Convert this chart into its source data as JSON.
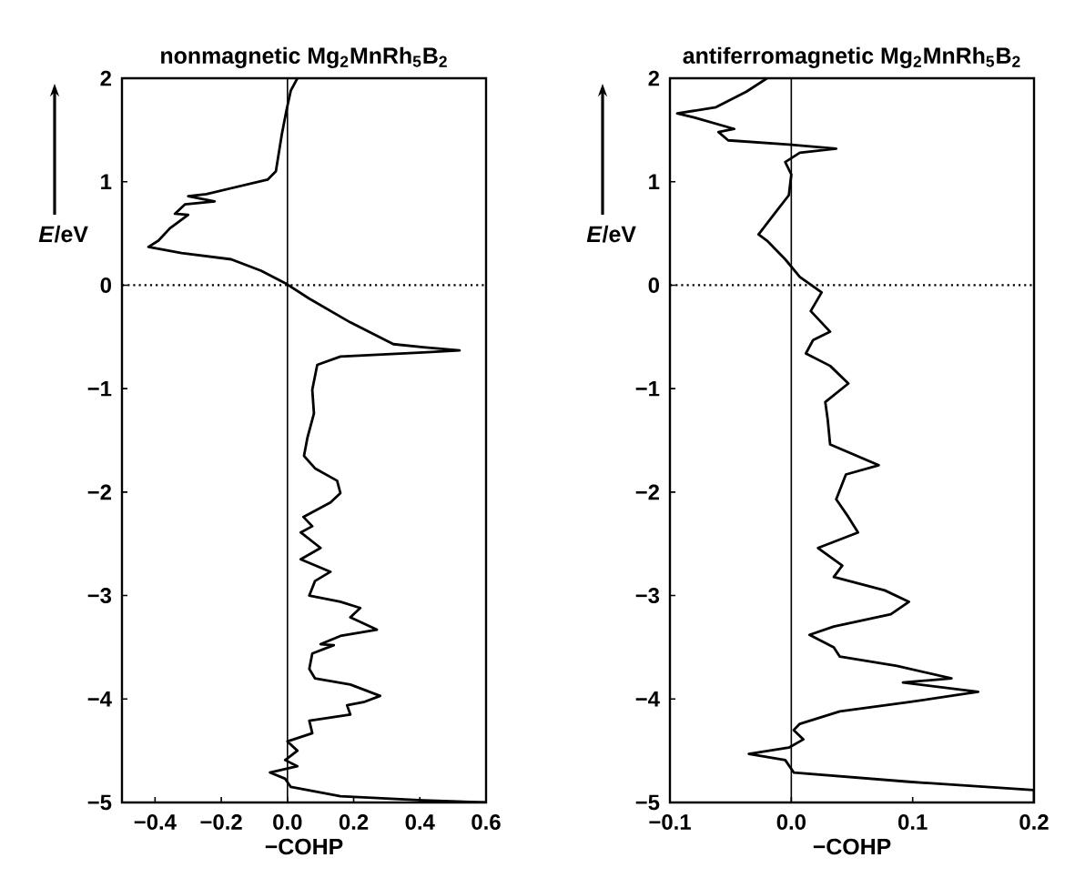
{
  "chart_data": [
    {
      "type": "line",
      "title": "nonmagnetic Mg$_{2}$MnRh$_{5}$B$_{2}$",
      "xlabel": "−COHP",
      "ylabel": "*E*/eV",
      "xlim": [
        -0.5,
        0.6
      ],
      "ylim": [
        -5,
        2
      ],
      "xticks": [
        {
          "value": -0.4,
          "label": "−0.4"
        },
        {
          "value": -0.2,
          "label": "−0.2"
        },
        {
          "value": 0.0,
          "label": "0.0"
        },
        {
          "value": 0.2,
          "label": "0.2"
        },
        {
          "value": 0.4,
          "label": "0.4"
        },
        {
          "value": 0.6,
          "label": "0.6"
        }
      ],
      "yticks": [
        {
          "value": -5,
          "label": "−5"
        },
        {
          "value": -4,
          "label": "−4"
        },
        {
          "value": -3,
          "label": "−3"
        },
        {
          "value": -2,
          "label": "−2"
        },
        {
          "value": -1,
          "label": "−1"
        },
        0,
        1,
        2
      ],
      "series": [
        {
          "color": "#000000",
          "x": [
            0.03,
            0.01,
            -0.003,
            -0.017,
            -0.035,
            -0.06,
            -0.245,
            -0.3,
            -0.22,
            -0.31,
            -0.34,
            -0.3,
            -0.355,
            -0.39,
            -0.42,
            -0.32,
            -0.17,
            -0.08,
            -0.007,
            0.066,
            0.19,
            0.32,
            0.41,
            0.52,
            0.41,
            0.16,
            0.09,
            0.075,
            0.08,
            0.06,
            0.05,
            0.083,
            0.15,
            0.16,
            0.13,
            0.048,
            0.075,
            0.04,
            0.1,
            0.04,
            0.13,
            0.083,
            0.066,
            0.16,
            0.22,
            0.19,
            0.27,
            0.16,
            0.1,
            0.14,
            0.075,
            0.066,
            0.083,
            0.19,
            0.28,
            0.23,
            0.18,
            0.19,
            0.066,
            0.075,
            0.0,
            0.03,
            -0.007,
            0.03,
            -0.053,
            -0.007,
            0.01,
            0.16,
            0.41,
            0.6
          ],
          "values": [
            2.0,
            1.88,
            1.69,
            1.46,
            1.1,
            1.02,
            0.88,
            0.86,
            0.81,
            0.78,
            0.69,
            0.68,
            0.55,
            0.43,
            0.37,
            0.31,
            0.25,
            0.14,
            0.02,
            -0.13,
            -0.36,
            -0.57,
            -0.6,
            -0.63,
            -0.65,
            -0.69,
            -0.77,
            -1.01,
            -1.24,
            -1.48,
            -1.65,
            -1.77,
            -1.89,
            -2.01,
            -2.1,
            -2.24,
            -2.33,
            -2.39,
            -2.54,
            -2.65,
            -2.77,
            -2.86,
            -3.0,
            -3.06,
            -3.12,
            -3.21,
            -3.33,
            -3.39,
            -3.47,
            -3.48,
            -3.56,
            -3.71,
            -3.8,
            -3.86,
            -3.97,
            -4.03,
            -4.06,
            -4.15,
            -4.21,
            -4.33,
            -4.41,
            -4.5,
            -4.59,
            -4.65,
            -4.71,
            -4.77,
            -4.85,
            -4.94,
            -4.98,
            -5.0
          ]
        }
      ],
      "ref_lines": [
        {
          "axis": "y",
          "value": 0,
          "line_style": "dotted",
          "color": "#000000"
        },
        {
          "axis": "x",
          "value": 0,
          "line_style": "solid",
          "color": "#000000"
        }
      ],
      "line_style": "solid"
    },
    {
      "type": "line",
      "title": "antiferromagnetic Mg$_{2}$MnRh$_{5}$B$_{2}$",
      "xlabel": "−COHP",
      "ylabel": "*E*/eV",
      "xlim": [
        -0.1,
        0.2
      ],
      "ylim": [
        -5,
        2
      ],
      "xticks": [
        {
          "value": -0.1,
          "label": "−0.1"
        },
        {
          "value": 0.0,
          "label": "0.0"
        },
        {
          "value": 0.1,
          "label": "0.1"
        },
        {
          "value": 0.2,
          "label": "0.2"
        }
      ],
      "yticks": [
        {
          "value": -5,
          "label": "−5"
        },
        {
          "value": -4,
          "label": "−4"
        },
        {
          "value": -3,
          "label": "−3"
        },
        {
          "value": -2,
          "label": "−2"
        },
        {
          "value": -1,
          "label": "−1"
        },
        0,
        1,
        2
      ],
      "series": [
        {
          "color": "#000000",
          "x": [
            -0.02,
            -0.037,
            -0.062,
            -0.094,
            -0.08,
            -0.047,
            -0.06,
            -0.052,
            -0.002,
            0.037,
            0.007,
            -0.005,
            0.0,
            -0.002,
            -0.012,
            -0.027,
            -0.02,
            -0.005,
            0.007,
            0.025,
            0.016,
            0.032,
            0.018,
            0.012,
            0.032,
            0.047,
            0.028,
            0.03,
            0.032,
            0.072,
            0.045,
            0.037,
            0.047,
            0.055,
            0.022,
            0.042,
            0.035,
            0.077,
            0.097,
            0.082,
            0.035,
            0.015,
            0.035,
            0.04,
            0.087,
            0.132,
            0.092,
            0.154,
            0.097,
            0.04,
            0.007,
            0.002,
            0.01,
            -0.002,
            -0.035,
            -0.005,
            0.002,
            0.097,
            0.2,
            0.2
          ],
          "values": [
            2.0,
            1.87,
            1.72,
            1.66,
            1.62,
            1.51,
            1.48,
            1.4,
            1.36,
            1.32,
            1.28,
            1.19,
            1.07,
            0.87,
            0.72,
            0.49,
            0.43,
            0.25,
            0.08,
            -0.07,
            -0.25,
            -0.45,
            -0.53,
            -0.66,
            -0.78,
            -0.95,
            -1.13,
            -1.3,
            -1.54,
            -1.74,
            -1.83,
            -2.07,
            -2.24,
            -2.39,
            -2.54,
            -2.71,
            -2.82,
            -2.95,
            -3.06,
            -3.18,
            -3.3,
            -3.38,
            -3.5,
            -3.59,
            -3.68,
            -3.8,
            -3.84,
            -3.93,
            -4.03,
            -4.12,
            -4.24,
            -4.3,
            -4.39,
            -4.47,
            -4.53,
            -4.59,
            -4.71,
            -4.8,
            -4.88,
            -5.0
          ]
        }
      ],
      "ref_lines": [
        {
          "axis": "y",
          "value": 0,
          "line_style": "dotted",
          "color": "#000000"
        },
        {
          "axis": "x",
          "value": 0,
          "line_style": "solid",
          "color": "#000000"
        }
      ],
      "line_style": "solid"
    }
  ]
}
